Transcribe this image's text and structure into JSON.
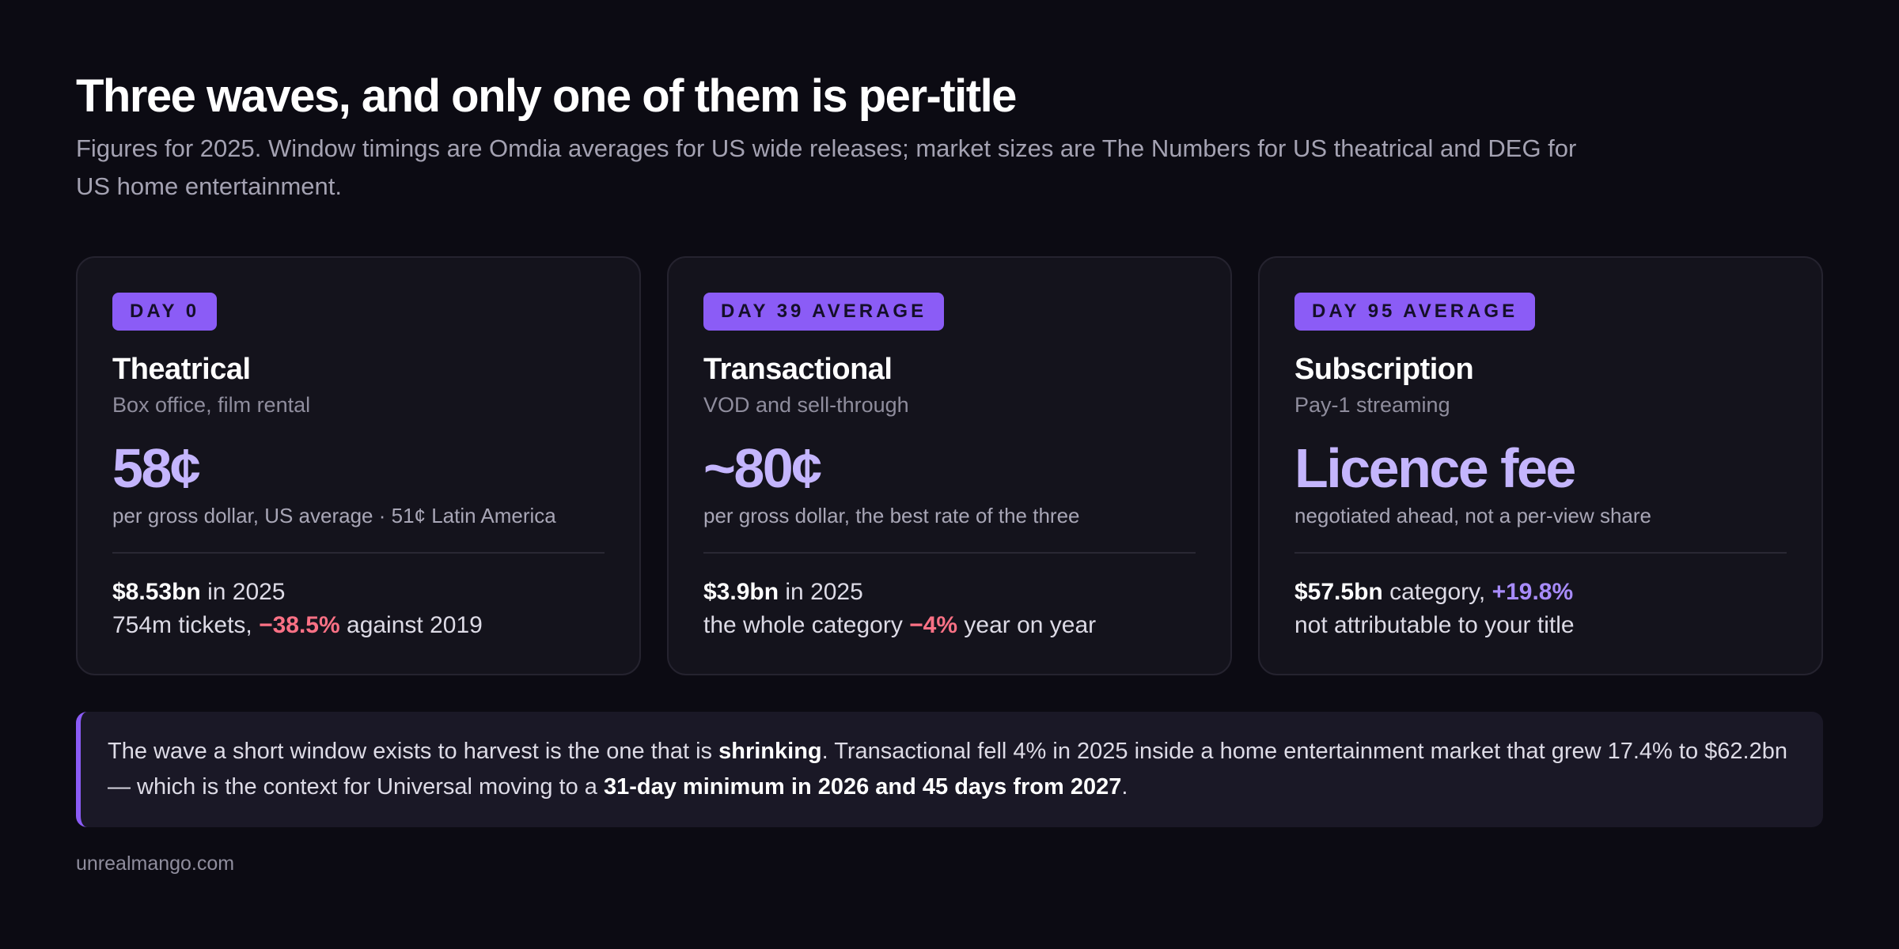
{
  "header": {
    "title": "Three waves, and only one of them is per-title",
    "subtitle": "Figures for 2025. Window timings are Omdia averages for US wide releases; market sizes are The Numbers for US theatrical and DEG for US home entertainment."
  },
  "colors": {
    "accent": "#8b5cf6",
    "big_value": "#c4b5fd",
    "negative": "#fb7185",
    "positive": "#a78bfa",
    "background": "#0c0b13",
    "card": "#14131c"
  },
  "cards": [
    {
      "badge": "DAY 0",
      "title": "Theatrical",
      "subtitle": "Box office, film rental",
      "big_value": "58¢",
      "big_caption": "per gross dollar, US average · 51¢ Latin America",
      "stat1_strong": "$8.53bn",
      "stat1_rest": " in 2025",
      "stat2_pre": "754m tickets, ",
      "stat2_em": "−38.5%",
      "stat2_post": " against 2019"
    },
    {
      "badge": "DAY 39 AVERAGE",
      "title": "Transactional",
      "subtitle": "VOD and sell-through",
      "big_value": "~80¢",
      "big_caption": "per gross dollar, the best rate of the three",
      "stat1_strong": "$3.9bn",
      "stat1_rest": " in 2025",
      "stat2_pre": "the whole category ",
      "stat2_em": "−4%",
      "stat2_post": " year on year"
    },
    {
      "badge": "DAY 95 AVERAGE",
      "title": "Subscription",
      "subtitle": "Pay-1 streaming",
      "big_value": "Licence fee",
      "big_caption": "negotiated ahead, not a per-view share",
      "stat1_strong": "$57.5bn",
      "stat1_rest": " category, ",
      "stat1_em": "+19.8%",
      "stat2_pre": "not attributable to your title"
    }
  ],
  "callout": {
    "part1": "The wave a short window exists to harvest is the one that is ",
    "strong1": "shrinking",
    "part2": ". Transactional fell 4% in 2025 inside a home entertainment market that grew 17.4% to $62.2bn — which is the context for Universal moving to a ",
    "strong2": "31-day minimum in 2026 and 45 days from 2027",
    "part3": "."
  },
  "footer": {
    "source": "unrealmango.com"
  }
}
